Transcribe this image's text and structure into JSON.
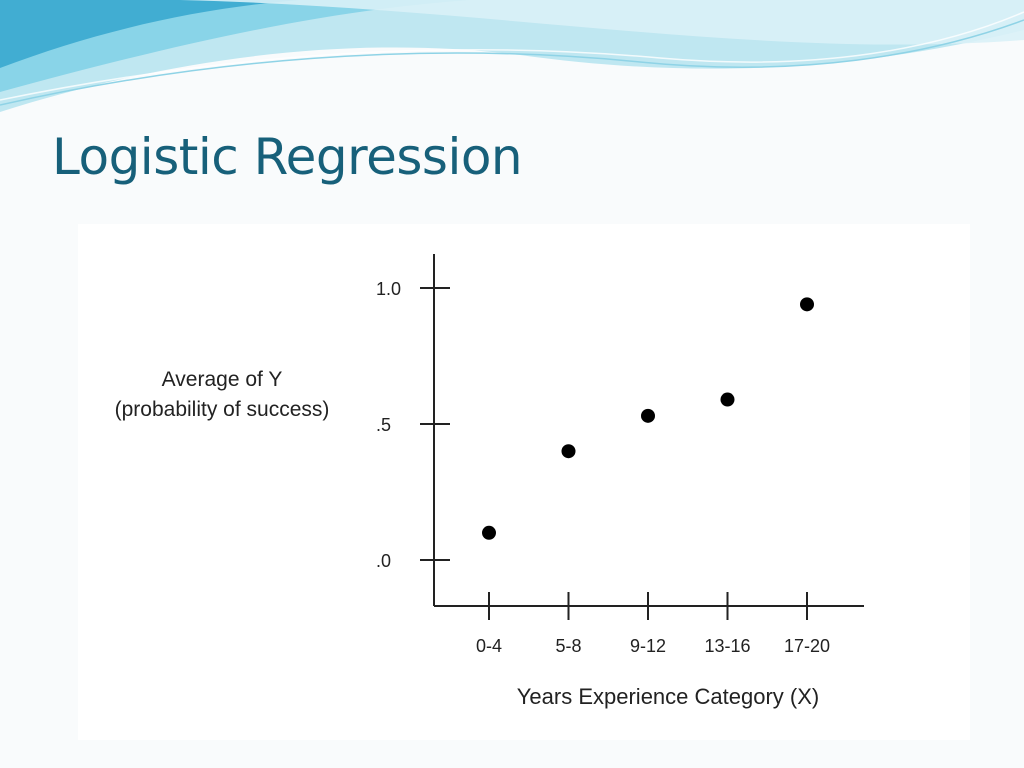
{
  "slide": {
    "title": "Logistic Regression"
  },
  "colors": {
    "title": "#17607a",
    "wave_light": "#bfe7f1",
    "wave_mid": "#7fd0e6",
    "wave_dark": "#3aa9cf",
    "points": "#000000"
  },
  "chart_data": {
    "type": "scatter",
    "ylabel_line1": "Average of Y",
    "ylabel_line2": "(probability of success)",
    "xlabel": "Years Experience Category (X)",
    "categories": [
      "0-4",
      "5-8",
      "9-12",
      "13-16",
      "17-20"
    ],
    "values": [
      0.1,
      0.4,
      0.53,
      0.59,
      0.94
    ],
    "y_ticks": [
      {
        "value": 1.0,
        "label": "1.0"
      },
      {
        "value": 0.5,
        "label": ".5"
      },
      {
        "value": 0.0,
        "label": ".0"
      }
    ],
    "ylim": [
      0,
      1
    ],
    "grid": false,
    "legend": "none"
  }
}
